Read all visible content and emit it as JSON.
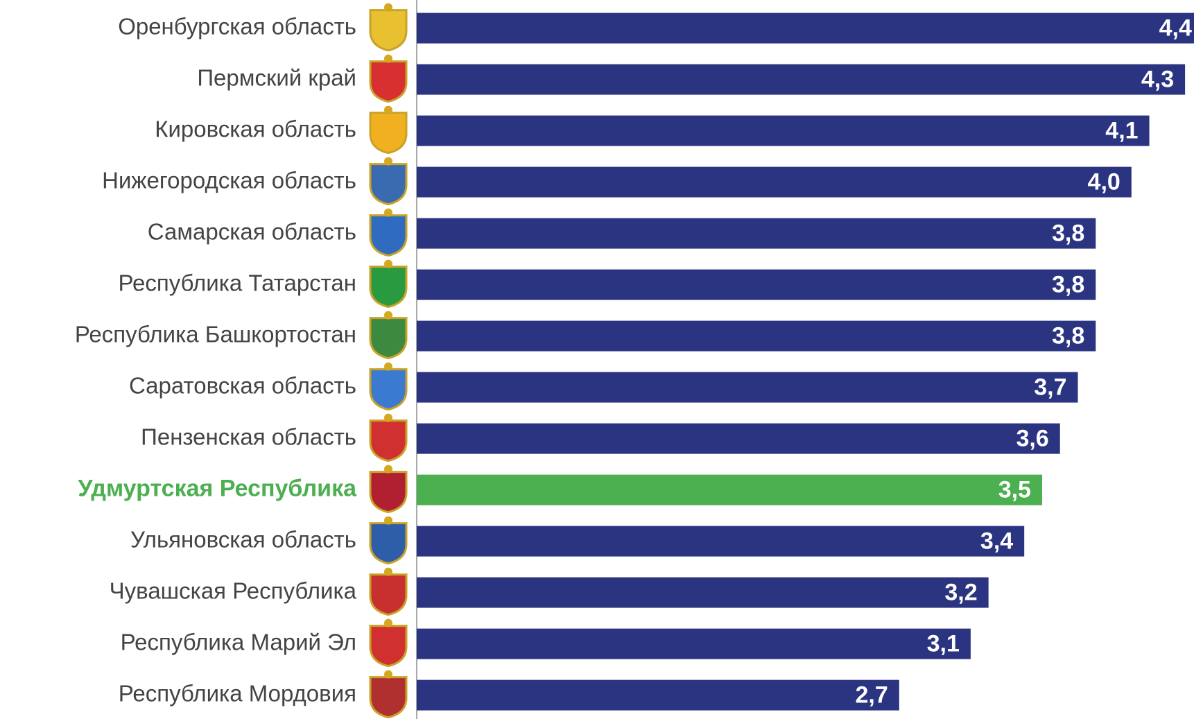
{
  "chart_data": {
    "type": "barh",
    "categories": [
      "Оренбургская область",
      "Пермский край",
      "Кировская область",
      "Нижегородская область",
      "Самарская область",
      "Республика Татарстан",
      "Республика Башкортостан",
      "Саратовская область",
      "Пензенская область",
      "Удмуртская Республика",
      "Ульяновская область",
      "Чувашская Республика",
      "Республика Марий Эл",
      "Республика Мордовия"
    ],
    "values": [
      4.4,
      4.3,
      4.1,
      4.0,
      3.8,
      3.8,
      3.8,
      3.7,
      3.6,
      3.5,
      3.4,
      3.2,
      3.1,
      2.7
    ],
    "value_labels": [
      "4,4",
      "4,3",
      "4,1",
      "4,0",
      "3,8",
      "3,8",
      "3,8",
      "3,7",
      "3,6",
      "3,5",
      "3,4",
      "3,2",
      "3,1",
      "2,7"
    ],
    "colors": [
      "#2b3480",
      "#2b3480",
      "#2b3480",
      "#2b3480",
      "#2b3480",
      "#2b3480",
      "#2b3480",
      "#2b3480",
      "#2b3480",
      "#4caf50",
      "#2b3480",
      "#2b3480",
      "#2b3480",
      "#2b3480"
    ],
    "xlim": [
      0,
      4.35
    ]
  }
}
